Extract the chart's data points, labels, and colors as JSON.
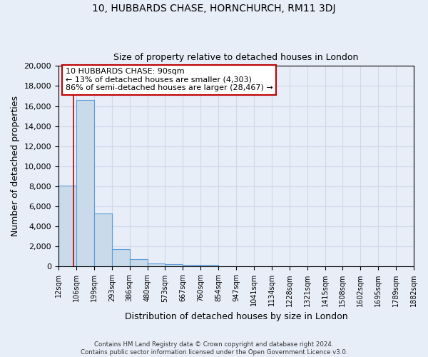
{
  "title": "10, HUBBARDS CHASE, HORNCHURCH, RM11 3DJ",
  "subtitle": "Size of property relative to detached houses in London",
  "xlabel": "Distribution of detached houses by size in London",
  "ylabel": "Number of detached properties",
  "footer_line1": "Contains HM Land Registry data © Crown copyright and database right 2024.",
  "footer_line2": "Contains public sector information licensed under the Open Government Licence v3.0.",
  "bin_labels": [
    "12sqm",
    "106sqm",
    "199sqm",
    "293sqm",
    "386sqm",
    "480sqm",
    "573sqm",
    "667sqm",
    "760sqm",
    "854sqm",
    "947sqm",
    "1041sqm",
    "1134sqm",
    "1228sqm",
    "1321sqm",
    "1415sqm",
    "1508sqm",
    "1602sqm",
    "1695sqm",
    "1789sqm",
    "1882sqm"
  ],
  "bar_values": [
    8100,
    16600,
    5300,
    1750,
    750,
    320,
    270,
    200,
    150,
    0,
    0,
    0,
    0,
    0,
    0,
    0,
    0,
    0,
    0,
    0
  ],
  "bar_color": "#c9daea",
  "bar_edge_color": "#5b9bd5",
  "annotation_line1": "10 HUBBARDS CHASE: 90sqm",
  "annotation_line2": "← 13% of detached houses are smaller (4,303)",
  "annotation_line3": "86% of semi-detached houses are larger (28,467) →",
  "annotation_box_edge_color": "#c00000",
  "annotation_box_face_color": "#ffffff",
  "vline_x": 90,
  "vline_color": "#c00000",
  "ylim": [
    0,
    20000
  ],
  "yticks": [
    0,
    2000,
    4000,
    6000,
    8000,
    10000,
    12000,
    14000,
    16000,
    18000,
    20000
  ],
  "bin_edges_sqm": [
    12,
    106,
    199,
    293,
    386,
    480,
    573,
    667,
    760,
    854,
    947,
    1041,
    1134,
    1228,
    1321,
    1415,
    1508,
    1602,
    1695,
    1789,
    1882
  ],
  "grid_color": "#d0d8e8",
  "background_color": "#e8eef8"
}
